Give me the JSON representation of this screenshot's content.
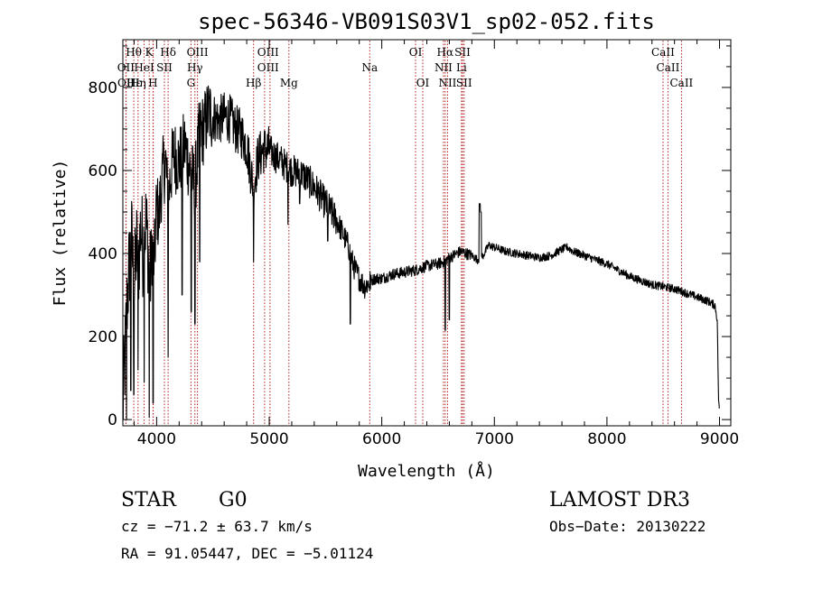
{
  "chart_data": {
    "type": "line",
    "title": "spec-56346-VB091S03V1_sp02-052.fits",
    "xlabel": "Wavelength (Å)",
    "ylabel": "Flux (relative)",
    "xlim": [
      3700,
      9100
    ],
    "ylim": [
      -15,
      915
    ],
    "xticks": [
      4000,
      5000,
      6000,
      7000,
      8000,
      9000
    ],
    "xtick_labels": [
      "4000",
      "5000",
      "6000",
      "7000",
      "8000",
      "9000"
    ],
    "yticks": [
      0,
      200,
      400,
      600,
      800
    ],
    "ytick_labels": [
      "0",
      "200",
      "400",
      "600",
      "800"
    ],
    "x_minor_step": 200,
    "y_minor_step": 50,
    "grid": false,
    "line_color": "#000000",
    "marker_color": "#b22222",
    "spectrum": {
      "anchors": [
        [
          3700,
          30
        ],
        [
          3720,
          150
        ],
        [
          3740,
          300
        ],
        [
          3760,
          380
        ],
        [
          3780,
          430
        ],
        [
          3800,
          300
        ],
        [
          3820,
          420
        ],
        [
          3840,
          380
        ],
        [
          3860,
          470
        ],
        [
          3880,
          400
        ],
        [
          3900,
          480
        ],
        [
          3920,
          430
        ],
        [
          3940,
          330
        ],
        [
          3960,
          420
        ],
        [
          3980,
          380
        ],
        [
          4000,
          520
        ],
        [
          4020,
          480
        ],
        [
          4040,
          560
        ],
        [
          4060,
          600
        ],
        [
          4080,
          620
        ],
        [
          4100,
          520
        ],
        [
          4120,
          580
        ],
        [
          4150,
          640
        ],
        [
          4200,
          620
        ],
        [
          4250,
          660
        ],
        [
          4300,
          600
        ],
        [
          4340,
          560
        ],
        [
          4380,
          690
        ],
        [
          4420,
          700
        ],
        [
          4460,
          740
        ],
        [
          4500,
          730
        ],
        [
          4550,
          720
        ],
        [
          4600,
          730
        ],
        [
          4650,
          725
        ],
        [
          4700,
          700
        ],
        [
          4750,
          690
        ],
        [
          4800,
          660
        ],
        [
          4860,
          560
        ],
        [
          4900,
          630
        ],
        [
          4950,
          650
        ],
        [
          5000,
          650
        ],
        [
          5050,
          635
        ],
        [
          5100,
          625
        ],
        [
          5150,
          610
        ],
        [
          5200,
          600
        ],
        [
          5300,
          590
        ],
        [
          5400,
          560
        ],
        [
          5500,
          520
        ],
        [
          5600,
          480
        ],
        [
          5650,
          450
        ],
        [
          5700,
          420
        ],
        [
          5750,
          370
        ],
        [
          5800,
          340
        ],
        [
          5850,
          320
        ],
        [
          5900,
          335
        ],
        [
          5950,
          340
        ],
        [
          6000,
          340
        ],
        [
          6100,
          350
        ],
        [
          6200,
          355
        ],
        [
          6300,
          360
        ],
        [
          6400,
          370
        ],
        [
          6500,
          375
        ],
        [
          6550,
          380
        ],
        [
          6600,
          390
        ],
        [
          6700,
          405
        ],
        [
          6800,
          395
        ],
        [
          6850,
          385
        ],
        [
          6900,
          395
        ],
        [
          6950,
          420
        ],
        [
          7000,
          415
        ],
        [
          7100,
          405
        ],
        [
          7200,
          400
        ],
        [
          7300,
          395
        ],
        [
          7400,
          390
        ],
        [
          7500,
          395
        ],
        [
          7600,
          410
        ],
        [
          7650,
          415
        ],
        [
          7700,
          405
        ],
        [
          7800,
          395
        ],
        [
          7900,
          385
        ],
        [
          8000,
          375
        ],
        [
          8100,
          360
        ],
        [
          8200,
          345
        ],
        [
          8300,
          335
        ],
        [
          8400,
          325
        ],
        [
          8500,
          320
        ],
        [
          8600,
          315
        ],
        [
          8700,
          305
        ],
        [
          8800,
          295
        ],
        [
          8900,
          285
        ],
        [
          8960,
          275
        ],
        [
          8980,
          240
        ],
        [
          8990,
          60
        ],
        [
          9000,
          10
        ]
      ],
      "absorption_features": [
        [
          3733,
          0
        ],
        [
          3770,
          70
        ],
        [
          3797,
          60
        ],
        [
          3835,
          120
        ],
        [
          3889,
          90
        ],
        [
          3934,
          5
        ],
        [
          3968,
          40
        ],
        [
          4102,
          150
        ],
        [
          4226,
          300
        ],
        [
          4308,
          260
        ],
        [
          4340,
          230
        ],
        [
          4383,
          380
        ],
        [
          4861,
          380
        ],
        [
          5167,
          470
        ],
        [
          5270,
          520
        ],
        [
          5520,
          430
        ],
        [
          5720,
          230
        ],
        [
          5893,
          310
        ],
        [
          6563,
          215
        ],
        [
          6600,
          240
        ]
      ],
      "emission_features": [
        [
          6870,
          520
        ],
        [
          6880,
          500
        ]
      ]
    },
    "line_markers": [
      {
        "name": "Hθ",
        "x": 3797
      },
      {
        "name": "K",
        "x": 3934
      },
      {
        "name": "Hδ",
        "x": 4102
      },
      {
        "name": "OIII",
        "x": 4363
      },
      {
        "name": "OIII",
        "x": 4959
      },
      {
        "name": "OIII",
        "x": 5007
      },
      {
        "name": "OII",
        "x": 3727
      },
      {
        "name": "HeI",
        "x": 3889
      },
      {
        "name": "SII",
        "x": 4069
      },
      {
        "name": "Hγ",
        "x": 4340
      },
      {
        "name": "OIII",
        "x": 4363
      },
      {
        "name": "OI",
        "x": 6300
      },
      {
        "name": "Hα",
        "x": 6563
      },
      {
        "name": "SII",
        "x": 6717
      },
      {
        "name": "OII",
        "x": 3729
      },
      {
        "name": "Hε",
        "x": 3970
      },
      {
        "name": "Hη",
        "x": 3835
      },
      {
        "name": "H",
        "x": 3968
      },
      {
        "name": "G",
        "x": 4305
      },
      {
        "name": "Hβ",
        "x": 4861
      },
      {
        "name": "Mg",
        "x": 5175
      },
      {
        "name": "Na",
        "x": 5893
      },
      {
        "name": "OI",
        "x": 6364
      },
      {
        "name": "NII",
        "x": 6548
      },
      {
        "name": "NII",
        "x": 6584
      },
      {
        "name": "Li",
        "x": 6708
      },
      {
        "name": "SII",
        "x": 6731
      },
      {
        "name": "CaII",
        "x": 8498
      },
      {
        "name": "CaII",
        "x": 8542
      },
      {
        "name": "CaII",
        "x": 8662
      }
    ],
    "line_labels_rows": [
      [
        {
          "t": "Hθ",
          "x": 3797
        },
        {
          "t": "K",
          "x": 3934
        },
        {
          "t": "Hδ",
          "x": 4102
        },
        {
          "t": "OIII",
          "x": 4363
        },
        {
          "t": "OIII",
          "x": 4990
        },
        {
          "t": "OI",
          "x": 6300
        },
        {
          "t": "Hα",
          "x": 6563
        },
        {
          "t": "SII",
          "x": 6717
        },
        {
          "t": "CaII",
          "x": 8498
        }
      ],
      [
        {
          "t": "OII",
          "x": 3727
        },
        {
          "t": "HeI",
          "x": 3889
        },
        {
          "t": "SII",
          "x": 4069
        },
        {
          "t": "Hγ",
          "x": 4340
        },
        {
          "t": "OIII",
          "x": 4990
        },
        {
          "t": "Na",
          "x": 5893
        },
        {
          "t": "NII",
          "x": 6548
        },
        {
          "t": "Li",
          "x": 6708
        },
        {
          "t": "CaII",
          "x": 8542
        }
      ],
      [
        {
          "t": "OII",
          "x": 3729
        },
        {
          "t": "Hε",
          "x": 3800
        },
        {
          "t": "Hη",
          "x": 3835
        },
        {
          "t": "H",
          "x": 3968
        },
        {
          "t": "G",
          "x": 4305
        },
        {
          "t": "Hβ",
          "x": 4861
        },
        {
          "t": "Mg",
          "x": 5175
        },
        {
          "t": "OI",
          "x": 6364
        },
        {
          "t": "NII",
          "x": 6584
        },
        {
          "t": "SII",
          "x": 6731
        },
        {
          "t": "CaII",
          "x": 8662
        }
      ]
    ]
  },
  "info": {
    "object_class": "STAR",
    "subclass": "G0",
    "survey": "LAMOST DR3",
    "redshift": "cz = −71.2 ± 63.7 km/s",
    "obs_date": "Obs−Date: 20130222",
    "coords": "RA =  91.05447, DEC =  −5.01124"
  }
}
